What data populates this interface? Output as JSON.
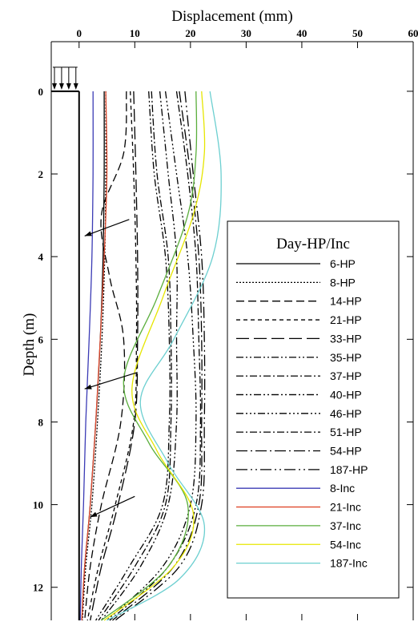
{
  "chart_data": {
    "type": "line",
    "xlabel": "Displacement (mm)",
    "ylabel": "Depth (m)",
    "xlim": [
      -5,
      60
    ],
    "ylim": [
      12.8,
      -1.2
    ],
    "x_axis_position": "top",
    "y_axis_reversed": true,
    "x_ticks": [
      0,
      10,
      20,
      30,
      40,
      50,
      60
    ],
    "y_ticks": [
      0,
      2,
      4,
      6,
      8,
      10,
      12
    ],
    "grid": false,
    "legend": {
      "title": "Day-HP/Inc",
      "position": "right"
    },
    "colors": {
      "hp": "#000000",
      "inc_8": "#3b3bb5",
      "inc_21": "#e04a2e",
      "inc_37": "#5aae3c",
      "inc_54": "#e6e600",
      "inc_187": "#6ccfd0"
    },
    "pile": {
      "x": 0,
      "top_depth": 0,
      "bottom_depth": 12.8,
      "load_arrows": 4
    },
    "series": [
      {
        "name": "6-HP",
        "style": "solid",
        "color": "#000000",
        "points": [
          [
            4.5,
            0
          ],
          [
            4.5,
            2
          ],
          [
            4.3,
            4
          ],
          [
            3.8,
            6
          ],
          [
            3.0,
            8
          ],
          [
            2.0,
            10
          ],
          [
            1.0,
            11.5
          ],
          [
            0.5,
            12.8
          ]
        ]
      },
      {
        "name": "8-HP",
        "style": "dot",
        "color": "#000000",
        "points": [
          [
            4.8,
            0
          ],
          [
            4.8,
            2
          ],
          [
            4.6,
            4
          ],
          [
            4.1,
            6
          ],
          [
            3.3,
            8
          ],
          [
            2.3,
            10
          ],
          [
            1.2,
            11.5
          ],
          [
            0.6,
            12.8
          ]
        ]
      },
      {
        "name": "14-HP",
        "style": "dash",
        "color": "#000000",
        "points": [
          [
            8.5,
            0
          ],
          [
            8.0,
            1.5
          ],
          [
            4.0,
            3.0
          ],
          [
            5.5,
            4.5
          ],
          [
            8.0,
            6
          ],
          [
            7.5,
            8
          ],
          [
            4.0,
            10
          ],
          [
            2.0,
            11.5
          ],
          [
            1.0,
            12.8
          ]
        ]
      },
      {
        "name": "21-HP",
        "style": "shortdash",
        "color": "#000000",
        "points": [
          [
            9.2,
            0
          ],
          [
            9.8,
            2
          ],
          [
            10.2,
            4
          ],
          [
            10.3,
            6
          ],
          [
            9.8,
            8
          ],
          [
            6.5,
            10
          ],
          [
            3.5,
            11.5
          ],
          [
            1.5,
            12.8
          ]
        ]
      },
      {
        "name": "33-HP",
        "style": "longdash",
        "color": "#000000",
        "points": [
          [
            9.8,
            0
          ],
          [
            10.2,
            2
          ],
          [
            10.5,
            4
          ],
          [
            10.5,
            6
          ],
          [
            10.0,
            8
          ],
          [
            7.0,
            10
          ],
          [
            4.0,
            11.5
          ],
          [
            2.0,
            12.8
          ]
        ]
      },
      {
        "name": "35-HP",
        "style": "dash-dot-dot",
        "color": "#000000",
        "points": [
          [
            12.5,
            0
          ],
          [
            13.5,
            2
          ],
          [
            15.5,
            4
          ],
          [
            16.2,
            6
          ],
          [
            16.2,
            8
          ],
          [
            15.0,
            10
          ],
          [
            9.0,
            11.5
          ],
          [
            3.0,
            12.8
          ]
        ]
      },
      {
        "name": "37-HP",
        "style": "dash-dot",
        "color": "#000000",
        "points": [
          [
            13.0,
            0
          ],
          [
            14.0,
            2
          ],
          [
            16.0,
            4
          ],
          [
            16.5,
            6
          ],
          [
            16.5,
            8
          ],
          [
            15.5,
            10
          ],
          [
            10.0,
            11.5
          ],
          [
            3.5,
            12.8
          ]
        ]
      },
      {
        "name": "40-HP",
        "style": "dash-dot-dot",
        "color": "#000000",
        "points": [
          [
            14.5,
            0
          ],
          [
            16.0,
            2
          ],
          [
            17.5,
            4
          ],
          [
            17.5,
            6
          ],
          [
            17.5,
            8
          ],
          [
            16.0,
            10
          ],
          [
            11.0,
            11.5
          ],
          [
            4.0,
            12.8
          ]
        ]
      },
      {
        "name": "46-HP",
        "style": "dash-dot-dot-dot",
        "color": "#000000",
        "points": [
          [
            15.5,
            0
          ],
          [
            17.5,
            2
          ],
          [
            19.5,
            4
          ],
          [
            20.5,
            6
          ],
          [
            21.0,
            8
          ],
          [
            20.0,
            10
          ],
          [
            15.0,
            11.5
          ],
          [
            5.0,
            12.8
          ]
        ]
      },
      {
        "name": "51-HP",
        "style": "dash-dot",
        "color": "#000000",
        "points": [
          [
            17.5,
            0
          ],
          [
            19.5,
            2
          ],
          [
            21.0,
            4
          ],
          [
            21.5,
            6
          ],
          [
            21.8,
            8
          ],
          [
            21.0,
            10
          ],
          [
            16.0,
            11.5
          ],
          [
            5.5,
            12.8
          ]
        ]
      },
      {
        "name": "54-HP",
        "style": "long-dash-dot",
        "color": "#000000",
        "points": [
          [
            18.0,
            0
          ],
          [
            20.0,
            2
          ],
          [
            21.5,
            4
          ],
          [
            22.0,
            6
          ],
          [
            22.0,
            8
          ],
          [
            21.5,
            10
          ],
          [
            17.0,
            11.5
          ],
          [
            6.0,
            12.8
          ]
        ]
      },
      {
        "name": "187-HP",
        "style": "long-dash-dot-dot",
        "color": "#000000",
        "points": [
          [
            19.0,
            0
          ],
          [
            20.5,
            2
          ],
          [
            22.0,
            4
          ],
          [
            22.5,
            6
          ],
          [
            22.5,
            8
          ],
          [
            22.0,
            10
          ],
          [
            18.0,
            11.5
          ],
          [
            6.5,
            12.8
          ]
        ]
      },
      {
        "name": "8-Inc",
        "style": "solid",
        "color": "#3b3bb5",
        "points": [
          [
            2.5,
            0
          ],
          [
            2.5,
            2
          ],
          [
            2.3,
            4
          ],
          [
            1.8,
            6
          ],
          [
            1.2,
            8
          ],
          [
            0.8,
            10
          ],
          [
            0.4,
            11.5
          ],
          [
            0.2,
            12.8
          ]
        ]
      },
      {
        "name": "21-Inc",
        "style": "solid",
        "color": "#e04a2e",
        "points": [
          [
            4.8,
            0
          ],
          [
            5.0,
            2
          ],
          [
            4.5,
            4
          ],
          [
            3.8,
            6
          ],
          [
            3.0,
            8
          ],
          [
            2.0,
            10
          ],
          [
            1.0,
            11.5
          ],
          [
            0.5,
            12.8
          ]
        ]
      },
      {
        "name": "37-Inc",
        "style": "solid",
        "color": "#5aae3c",
        "points": [
          [
            21.0,
            0
          ],
          [
            21.0,
            1.5
          ],
          [
            19.5,
            3
          ],
          [
            14.0,
            5
          ],
          [
            8.0,
            7
          ],
          [
            12.5,
            8.5
          ],
          [
            19.5,
            10
          ],
          [
            16.0,
            11.5
          ],
          [
            4.0,
            12.8
          ]
        ]
      },
      {
        "name": "54-Inc",
        "style": "solid",
        "color": "#e6e600",
        "points": [
          [
            22.0,
            0
          ],
          [
            22.5,
            1.5
          ],
          [
            20.5,
            3
          ],
          [
            15.0,
            5
          ],
          [
            9.5,
            7.2
          ],
          [
            14.0,
            8.7
          ],
          [
            20.5,
            10.2
          ],
          [
            17.0,
            11.5
          ],
          [
            4.5,
            12.8
          ]
        ]
      },
      {
        "name": "187-Inc",
        "style": "solid",
        "color": "#6ccfd0",
        "points": [
          [
            23.5,
            0
          ],
          [
            25.5,
            2
          ],
          [
            24.0,
            4
          ],
          [
            17.0,
            6
          ],
          [
            11.0,
            7.5
          ],
          [
            16.0,
            9
          ],
          [
            22.5,
            10.5
          ],
          [
            18.0,
            11.8
          ],
          [
            5.0,
            12.8
          ]
        ]
      }
    ]
  }
}
